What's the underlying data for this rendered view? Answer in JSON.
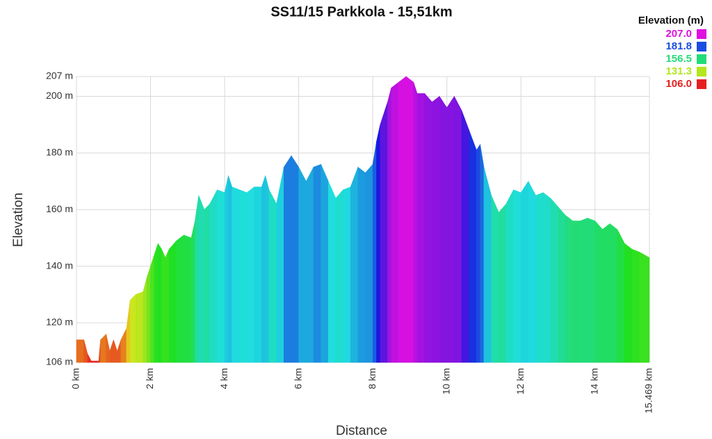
{
  "chart_data": {
    "type": "elevation_profile",
    "title": "SS11/15 Parkkola - 15,51km",
    "x_label": "Distance",
    "y_label": "Elevation",
    "x": [
      0,
      0.2,
      0.3,
      0.4,
      0.6,
      0.65,
      0.8,
      0.9,
      1.0,
      1.1,
      1.2,
      1.35,
      1.45,
      1.6,
      1.8,
      1.9,
      2.0,
      2.1,
      2.2,
      2.3,
      2.4,
      2.5,
      2.7,
      2.9,
      3.1,
      3.2,
      3.3,
      3.45,
      3.6,
      3.8,
      4.0,
      4.1,
      4.2,
      4.4,
      4.6,
      4.8,
      5.0,
      5.1,
      5.2,
      5.4,
      5.6,
      5.8,
      6.0,
      6.2,
      6.4,
      6.6,
      6.8,
      7.0,
      7.2,
      7.4,
      7.6,
      7.8,
      8.0,
      8.1,
      8.2,
      8.4,
      8.5,
      8.7,
      8.9,
      9.1,
      9.2,
      9.4,
      9.6,
      9.8,
      10.0,
      10.2,
      10.4,
      10.6,
      10.8,
      10.9,
      11.0,
      11.2,
      11.4,
      11.6,
      11.8,
      12.0,
      12.2,
      12.4,
      12.6,
      12.8,
      13.0,
      13.2,
      13.4,
      13.6,
      13.8,
      14.0,
      14.2,
      14.4,
      14.6,
      14.8,
      15.0,
      15.2,
      15.469
    ],
    "values": [
      114,
      114,
      109,
      106.5,
      106.5,
      114,
      116,
      110,
      114,
      110,
      114,
      118,
      128,
      130,
      131,
      136,
      140,
      144,
      148,
      146,
      143,
      146,
      149,
      151,
      150,
      156,
      165,
      160,
      162,
      167,
      166,
      172,
      168,
      167,
      166,
      168,
      168,
      172,
      167,
      162,
      175,
      179,
      175,
      170,
      175,
      176,
      170,
      164,
      167,
      168,
      175,
      173,
      176,
      184,
      190,
      198,
      203,
      205,
      207,
      205,
      201,
      201,
      198,
      200,
      196,
      200,
      195,
      188,
      181,
      183,
      175,
      165,
      159,
      162,
      167,
      166,
      170,
      165,
      166,
      164,
      161,
      158,
      156,
      156,
      157,
      156,
      153,
      155,
      153,
      148,
      146,
      145,
      143
    ],
    "xlim": [
      0,
      15.469
    ],
    "xticks": [
      {
        "value": 0,
        "label": "0 km"
      },
      {
        "value": 2,
        "label": "2 km"
      },
      {
        "value": 4,
        "label": "4 km"
      },
      {
        "value": 6,
        "label": "6 km"
      },
      {
        "value": 8,
        "label": "8 km"
      },
      {
        "value": 10,
        "label": "10 km"
      },
      {
        "value": 12,
        "label": "12 km"
      },
      {
        "value": 14,
        "label": "14 km"
      },
      {
        "value": 15.469,
        "label": "15.469 km"
      }
    ],
    "ylim": [
      106,
      207
    ],
    "yticks": [
      {
        "value": 106,
        "label": "106 m"
      },
      {
        "value": 120,
        "label": "120 m"
      },
      {
        "value": 140,
        "label": "140 m"
      },
      {
        "value": 160,
        "label": "160 m"
      },
      {
        "value": 180,
        "label": "180 m"
      },
      {
        "value": 200,
        "label": "200 m"
      },
      {
        "value": 207,
        "label": "207 m"
      }
    ],
    "grid": true,
    "colorbar": {
      "title": "Elevation (m)",
      "values": [
        207,
        181.8,
        156.5,
        131.3,
        106
      ],
      "value_labels": [
        "207.0",
        "181.8",
        "156.5",
        "131.3",
        "106.0"
      ],
      "colors": [
        "#e010e0",
        "#1a4ce0",
        "#22dc78",
        "#b4e61e",
        "#e62020"
      ]
    }
  }
}
